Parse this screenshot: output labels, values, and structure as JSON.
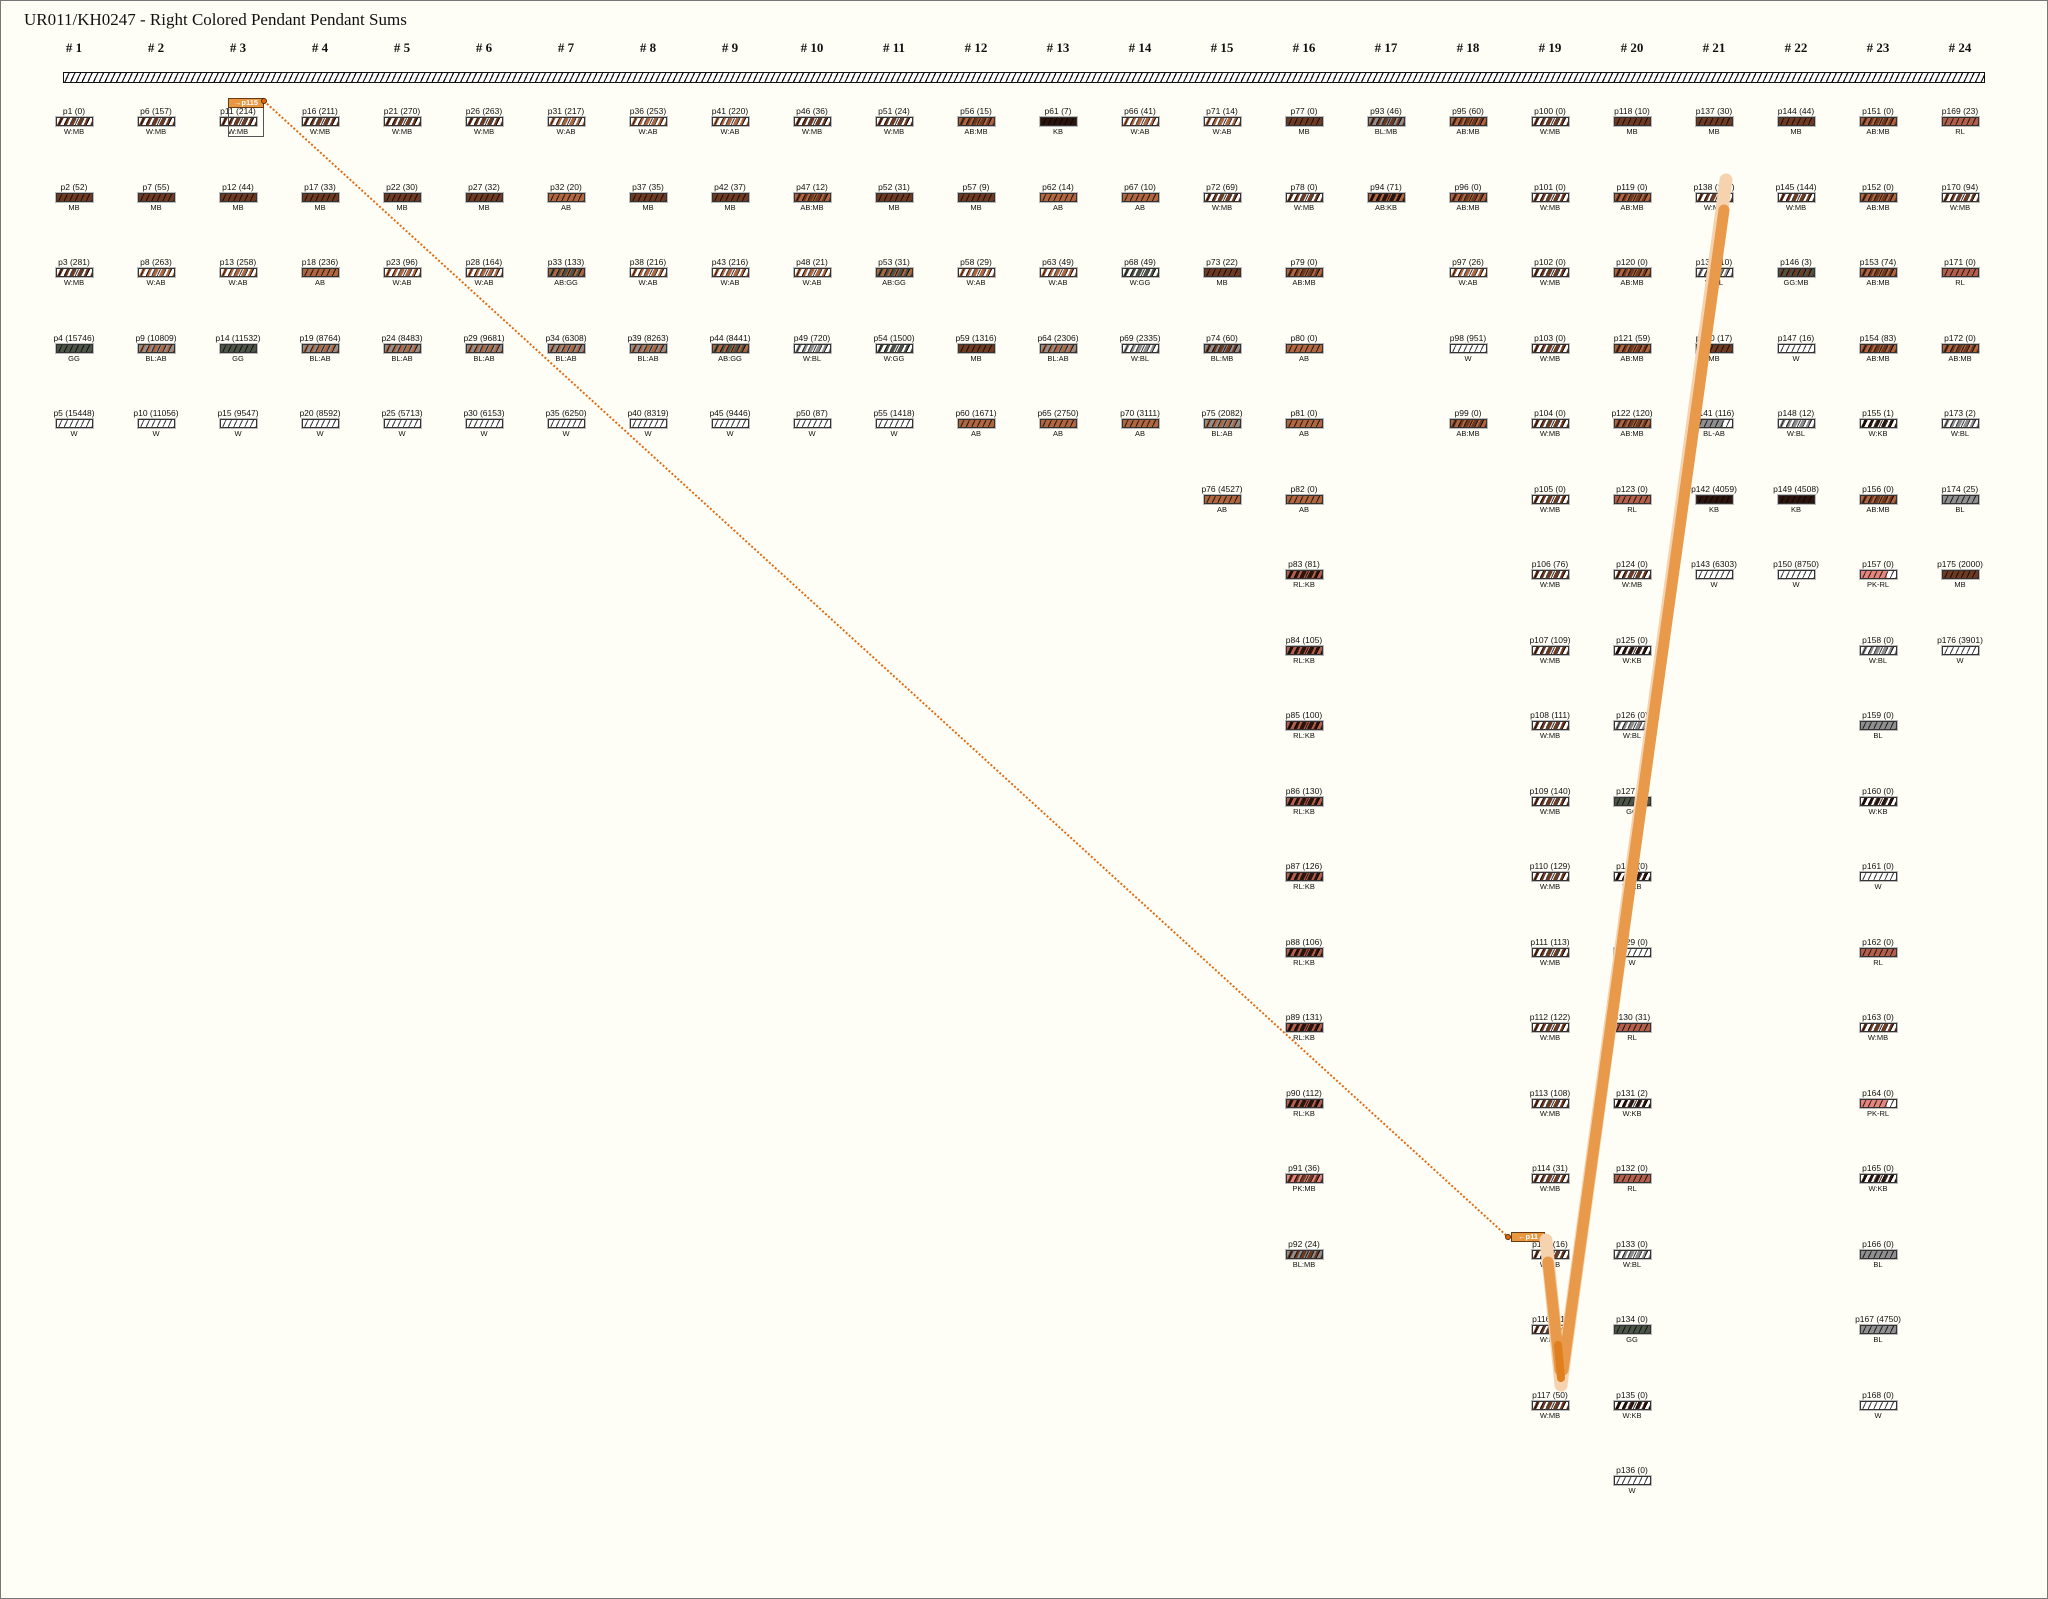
{
  "title": "UR011/KH0247 - Right Colored Pendant Pendant Sums",
  "colors": {
    "W": "#ffffff",
    "MB": "#6e3a22",
    "AB": "#b0663e",
    "KB": "#2c140c",
    "GG": "#4b5446",
    "BL": "#8f8f8f",
    "RL": "#b2604c",
    "PK": "#e4867e",
    "link": "#e8963f",
    "dotted": "#e06a10"
  },
  "highlight": {
    "source": "p11",
    "source_tag": "→p115",
    "target": "p115",
    "target_tag": "←p11"
  },
  "columns": [
    {
      "header": "# 1",
      "pendants": [
        {
          "label": "p1 (0)",
          "color": "W:MB"
        },
        {
          "label": "p2 (52)",
          "color": "MB"
        },
        {
          "label": "p3 (281)",
          "color": "W:MB"
        },
        {
          "label": "p4 (15746)",
          "color": "GG"
        },
        {
          "label": "p5 (15448)",
          "color": "W"
        }
      ]
    },
    {
      "header": "# 2",
      "pendants": [
        {
          "label": "p6 (157)",
          "color": "W:MB"
        },
        {
          "label": "p7 (55)",
          "color": "MB"
        },
        {
          "label": "p8 (263)",
          "color": "W:AB"
        },
        {
          "label": "p9 (10809)",
          "color": "BL:AB"
        },
        {
          "label": "p10 (11056)",
          "color": "W"
        }
      ]
    },
    {
      "header": "# 3",
      "pendants": [
        {
          "label": "p11 (214)",
          "color": "W:MB"
        },
        {
          "label": "p12 (44)",
          "color": "MB"
        },
        {
          "label": "p13 (258)",
          "color": "W:AB"
        },
        {
          "label": "p14 (11532)",
          "color": "GG"
        },
        {
          "label": "p15 (9547)",
          "color": "W"
        }
      ]
    },
    {
      "header": "# 4",
      "pendants": [
        {
          "label": "p16 (211)",
          "color": "W:MB"
        },
        {
          "label": "p17 (33)",
          "color": "MB"
        },
        {
          "label": "p18 (236)",
          "color": "AB"
        },
        {
          "label": "p19 (8764)",
          "color": "BL:AB"
        },
        {
          "label": "p20 (8592)",
          "color": "W"
        }
      ]
    },
    {
      "header": "# 5",
      "pendants": [
        {
          "label": "p21 (270)",
          "color": "W:MB"
        },
        {
          "label": "p22 (30)",
          "color": "MB"
        },
        {
          "label": "p23 (96)",
          "color": "W:AB"
        },
        {
          "label": "p24 (8483)",
          "color": "BL:AB"
        },
        {
          "label": "p25 (5713)",
          "color": "W"
        }
      ]
    },
    {
      "header": "# 6",
      "pendants": [
        {
          "label": "p26 (263)",
          "color": "W:MB"
        },
        {
          "label": "p27 (32)",
          "color": "MB"
        },
        {
          "label": "p28 (164)",
          "color": "W:AB"
        },
        {
          "label": "p29 (9681)",
          "color": "BL:AB"
        },
        {
          "label": "p30 (6153)",
          "color": "W"
        }
      ]
    },
    {
      "header": "# 7",
      "pendants": [
        {
          "label": "p31 (217)",
          "color": "W:AB"
        },
        {
          "label": "p32 (20)",
          "color": "AB"
        },
        {
          "label": "p33 (133)",
          "color": "AB:GG"
        },
        {
          "label": "p34 (6308)",
          "color": "BL:AB"
        },
        {
          "label": "p35 (6250)",
          "color": "W"
        }
      ]
    },
    {
      "header": "# 8",
      "pendants": [
        {
          "label": "p36 (253)",
          "color": "W:AB"
        },
        {
          "label": "p37 (35)",
          "color": "MB"
        },
        {
          "label": "p38 (216)",
          "color": "W:AB"
        },
        {
          "label": "p39 (8263)",
          "color": "BL:AB"
        },
        {
          "label": "p40 (8319)",
          "color": "W"
        }
      ]
    },
    {
      "header": "# 9",
      "pendants": [
        {
          "label": "p41 (220)",
          "color": "W:AB"
        },
        {
          "label": "p42 (37)",
          "color": "MB"
        },
        {
          "label": "p43 (216)",
          "color": "W:AB"
        },
        {
          "label": "p44 (8441)",
          "color": "AB:GG"
        },
        {
          "label": "p45 (9446)",
          "color": "W"
        }
      ]
    },
    {
      "header": "# 10",
      "pendants": [
        {
          "label": "p46 (36)",
          "color": "W:MB"
        },
        {
          "label": "p47 (12)",
          "color": "AB:MB"
        },
        {
          "label": "p48 (21)",
          "color": "W:AB"
        },
        {
          "label": "p49 (720)",
          "color": "W:BL"
        },
        {
          "label": "p50 (87)",
          "color": "W"
        }
      ]
    },
    {
      "header": "# 11",
      "pendants": [
        {
          "label": "p51 (24)",
          "color": "W:MB"
        },
        {
          "label": "p52 (31)",
          "color": "MB"
        },
        {
          "label": "p53 (31)",
          "color": "AB:GG"
        },
        {
          "label": "p54 (1500)",
          "color": "W:GG"
        },
        {
          "label": "p55 (1418)",
          "color": "W"
        }
      ]
    },
    {
      "header": "# 12",
      "pendants": [
        {
          "label": "p56 (15)",
          "color": "AB:MB"
        },
        {
          "label": "p57 (9)",
          "color": "MB"
        },
        {
          "label": "p58 (29)",
          "color": "W:AB"
        },
        {
          "label": "p59 (1316)",
          "color": "MB"
        },
        {
          "label": "p60 (1671)",
          "color": "AB"
        }
      ]
    },
    {
      "header": "# 13",
      "pendants": [
        {
          "label": "p61 (7)",
          "color": "KB"
        },
        {
          "label": "p62 (14)",
          "color": "AB"
        },
        {
          "label": "p63 (49)",
          "color": "W:AB"
        },
        {
          "label": "p64 (2306)",
          "color": "BL:AB"
        },
        {
          "label": "p65 (2750)",
          "color": "AB"
        }
      ]
    },
    {
      "header": "# 14",
      "pendants": [
        {
          "label": "p66 (41)",
          "color": "W:AB"
        },
        {
          "label": "p67 (10)",
          "color": "AB"
        },
        {
          "label": "p68 (49)",
          "color": "W:GG"
        },
        {
          "label": "p69 (2335)",
          "color": "W:BL"
        },
        {
          "label": "p70 (3111)",
          "color": "AB"
        }
      ]
    },
    {
      "header": "# 15",
      "pendants": [
        {
          "label": "p71 (14)",
          "color": "W:AB"
        },
        {
          "label": "p72 (69)",
          "color": "W:MB"
        },
        {
          "label": "p73 (22)",
          "color": "MB"
        },
        {
          "label": "p74 (60)",
          "color": "BL:MB"
        },
        {
          "label": "p75 (2082)",
          "color": "BL:AB"
        },
        {
          "label": "p76 (4527)",
          "color": "AB"
        }
      ]
    },
    {
      "header": "# 16",
      "pendants": [
        {
          "label": "p77 (0)",
          "color": "MB"
        },
        {
          "label": "p78 (0)",
          "color": "W:MB"
        },
        {
          "label": "p79 (0)",
          "color": "AB:MB"
        },
        {
          "label": "p80 (0)",
          "color": "AB"
        },
        {
          "label": "p81 (0)",
          "color": "AB"
        },
        {
          "label": "p82 (0)",
          "color": "AB"
        },
        {
          "label": "p83 (81)",
          "color": "RL:KB"
        },
        {
          "label": "p84 (105)",
          "color": "RL:KB"
        },
        {
          "label": "p85 (100)",
          "color": "RL:KB"
        },
        {
          "label": "p86 (130)",
          "color": "RL:KB"
        },
        {
          "label": "p87 (126)",
          "color": "RL:KB"
        },
        {
          "label": "p88 (106)",
          "color": "RL:KB"
        },
        {
          "label": "p89 (131)",
          "color": "RL:KB"
        },
        {
          "label": "p90 (112)",
          "color": "RL:KB"
        },
        {
          "label": "p91 (36)",
          "color": "PK:MB"
        },
        {
          "label": "p92 (24)",
          "color": "BL:MB"
        }
      ]
    },
    {
      "header": "# 17",
      "pendants": [
        {
          "label": "p93 (46)",
          "color": "BL:MB"
        },
        {
          "label": "p94 (71)",
          "color": "AB:KB"
        }
      ]
    },
    {
      "header": "# 18",
      "pendants": [
        {
          "label": "p95 (60)",
          "color": "AB:MB"
        },
        {
          "label": "p96 (0)",
          "color": "AB:MB"
        },
        {
          "label": "p97 (26)",
          "color": "W:AB"
        },
        {
          "label": "p98 (951)",
          "color": "W"
        },
        {
          "label": "p99 (0)",
          "color": "AB:MB"
        }
      ]
    },
    {
      "header": "# 19",
      "pendants": [
        {
          "label": "p100 (0)",
          "color": "W:MB"
        },
        {
          "label": "p101 (0)",
          "color": "W:MB"
        },
        {
          "label": "p102 (0)",
          "color": "W:MB"
        },
        {
          "label": "p103 (0)",
          "color": "W:MB"
        },
        {
          "label": "p104 (0)",
          "color": "W:MB"
        },
        {
          "label": "p105 (0)",
          "color": "W:MB"
        },
        {
          "label": "p106 (76)",
          "color": "W:MB"
        },
        {
          "label": "p107 (109)",
          "color": "W:MB"
        },
        {
          "label": "p108 (111)",
          "color": "W:MB"
        },
        {
          "label": "p109 (140)",
          "color": "W:MB"
        },
        {
          "label": "p110 (129)",
          "color": "W:MB"
        },
        {
          "label": "p111 (113)",
          "color": "W:MB"
        },
        {
          "label": "p112 (122)",
          "color": "W:MB"
        },
        {
          "label": "p113 (108)",
          "color": "W:MB"
        },
        {
          "label": "p114 (31)",
          "color": "W:MB"
        },
        {
          "label": "p115 (16)",
          "color": "W:MB"
        },
        {
          "label": "p116 (41)",
          "color": "W:MB"
        },
        {
          "label": "p117 (50)",
          "color": "W:MB"
        }
      ]
    },
    {
      "header": "# 20",
      "pendants": [
        {
          "label": "p118 (10)",
          "color": "MB"
        },
        {
          "label": "p119 (0)",
          "color": "AB:MB"
        },
        {
          "label": "p120 (0)",
          "color": "AB:MB"
        },
        {
          "label": "p121 (59)",
          "color": "AB:MB"
        },
        {
          "label": "p122 (120)",
          "color": "AB:MB"
        },
        {
          "label": "p123 (0)",
          "color": "RL"
        },
        {
          "label": "p124 (0)",
          "color": "W:MB"
        },
        {
          "label": "p125 (0)",
          "color": "W:KB"
        },
        {
          "label": "p126 (0)",
          "color": "W:BL"
        },
        {
          "label": "p127 (5)",
          "color": "GG"
        },
        {
          "label": "p128 (0)",
          "color": "W:KB"
        },
        {
          "label": "p129 (0)",
          "color": "W"
        },
        {
          "label": "p130 (31)",
          "color": "RL"
        },
        {
          "label": "p131 (2)",
          "color": "W:KB"
        },
        {
          "label": "p132 (0)",
          "color": "RL"
        },
        {
          "label": "p133 (0)",
          "color": "W:BL"
        },
        {
          "label": "p134 (0)",
          "color": "GG"
        },
        {
          "label": "p135 (0)",
          "color": "W:KB"
        },
        {
          "label": "p136 (0)",
          "color": "W"
        }
      ]
    },
    {
      "header": "# 21",
      "pendants": [
        {
          "label": "p137 (30)",
          "color": "MB"
        },
        {
          "label": "p138 (107)",
          "color": "W:MB"
        },
        {
          "label": "p139 (10)",
          "color": "W:BL"
        },
        {
          "label": "p140 (17)",
          "color": "MB"
        },
        {
          "label": "p141 (116)",
          "color": "BL-AB"
        },
        {
          "label": "p142 (4059)",
          "color": "KB"
        },
        {
          "label": "p143 (6303)",
          "color": "W"
        }
      ]
    },
    {
      "header": "# 22",
      "pendants": [
        {
          "label": "p144 (44)",
          "color": "MB"
        },
        {
          "label": "p145 (144)",
          "color": "W:MB"
        },
        {
          "label": "p146 (3)",
          "color": "GG:MB"
        },
        {
          "label": "p147 (16)",
          "color": "W"
        },
        {
          "label": "p148 (12)",
          "color": "W:BL"
        },
        {
          "label": "p149 (4508)",
          "color": "KB"
        },
        {
          "label": "p150 (8750)",
          "color": "W"
        }
      ]
    },
    {
      "header": "# 23",
      "pendants": [
        {
          "label": "p151 (0)",
          "color": "AB:MB"
        },
        {
          "label": "p152 (0)",
          "color": "AB:MB"
        },
        {
          "label": "p153 (74)",
          "color": "AB:MB"
        },
        {
          "label": "p154 (83)",
          "color": "AB:MB"
        },
        {
          "label": "p155 (1)",
          "color": "W:KB"
        },
        {
          "label": "p156 (0)",
          "color": "AB:MB"
        },
        {
          "label": "p157 (0)",
          "color": "PK-RL"
        },
        {
          "label": "p158 (0)",
          "color": "W:BL"
        },
        {
          "label": "p159 (0)",
          "color": "BL"
        },
        {
          "label": "p160 (0)",
          "color": "W:KB"
        },
        {
          "label": "p161 (0)",
          "color": "W"
        },
        {
          "label": "p162 (0)",
          "color": "RL"
        },
        {
          "label": "p163 (0)",
          "color": "W:MB"
        },
        {
          "label": "p164 (0)",
          "color": "PK-RL"
        },
        {
          "label": "p165 (0)",
          "color": "W:KB"
        },
        {
          "label": "p166 (0)",
          "color": "BL"
        },
        {
          "label": "p167 (4750)",
          "color": "BL"
        },
        {
          "label": "p168 (0)",
          "color": "W"
        }
      ]
    },
    {
      "header": "# 24",
      "pendants": [
        {
          "label": "p169 (23)",
          "color": "RL"
        },
        {
          "label": "p170 (94)",
          "color": "W:MB"
        },
        {
          "label": "p171 (0)",
          "color": "RL"
        },
        {
          "label": "p172 (0)",
          "color": "AB:MB"
        },
        {
          "label": "p173 (2)",
          "color": "W:BL"
        },
        {
          "label": "p174 (25)",
          "color": "BL"
        },
        {
          "label": "p175 (2000)",
          "color": "MB"
        },
        {
          "label": "p176 (3901)",
          "color": "W"
        }
      ]
    }
  ]
}
